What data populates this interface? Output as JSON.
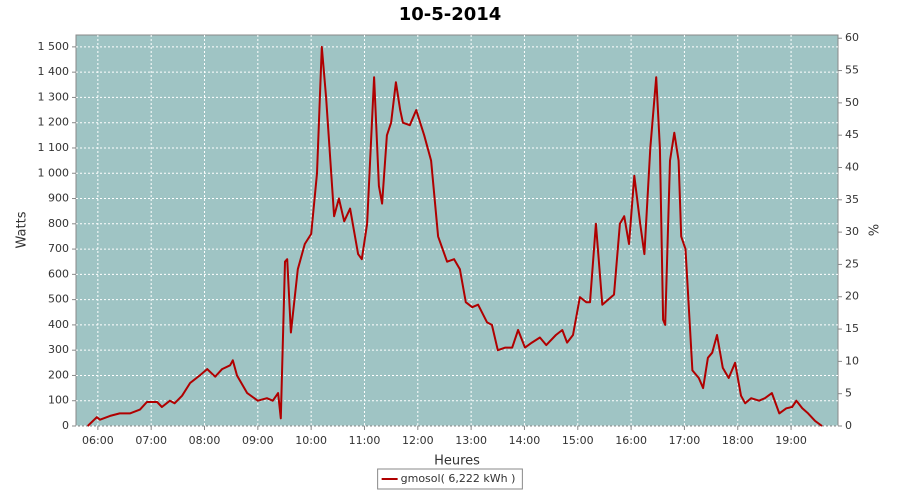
{
  "chart_data": {
    "type": "line",
    "title": "10-5-2014",
    "x_label": "Heures",
    "y_label": "Watts",
    "y2_label": "%",
    "x": [
      5.81,
      5.98,
      6.04,
      6.23,
      6.41,
      6.6,
      6.79,
      6.92,
      7.11,
      7.2,
      7.35,
      7.44,
      7.58,
      7.73,
      7.91,
      8.05,
      8.2,
      8.33,
      8.48,
      8.53,
      8.61,
      8.8,
      9.0,
      9.17,
      9.28,
      9.38,
      9.43,
      9.51,
      9.55,
      9.62,
      9.75,
      9.88,
      10.0,
      10.11,
      10.2,
      10.28,
      10.43,
      10.52,
      10.62,
      10.73,
      10.88,
      10.95,
      11.05,
      11.18,
      11.27,
      11.33,
      11.42,
      11.5,
      11.59,
      11.67,
      11.72,
      11.85,
      11.97,
      12.12,
      12.25,
      12.38,
      12.55,
      12.68,
      12.79,
      12.9,
      13.02,
      13.13,
      13.3,
      13.39,
      13.5,
      13.64,
      13.77,
      13.88,
      14.01,
      14.14,
      14.29,
      14.41,
      14.59,
      14.71,
      14.8,
      14.91,
      15.04,
      15.16,
      15.23,
      15.34,
      15.46,
      15.57,
      15.68,
      15.79,
      15.87,
      15.96,
      16.06,
      16.17,
      16.25,
      16.36,
      16.47,
      16.54,
      16.6,
      16.64,
      16.73,
      16.81,
      16.89,
      16.94,
      17.02,
      17.15,
      17.27,
      17.35,
      17.44,
      17.52,
      17.61,
      17.72,
      17.83,
      17.95,
      18.06,
      18.14,
      18.25,
      18.4,
      18.51,
      18.64,
      18.78,
      18.91,
      19.02,
      19.1,
      19.21,
      19.32,
      19.45,
      19.58
    ],
    "series": [
      {
        "name": "gmosol( 6,222 kWh )",
        "color": "#b00000",
        "values": [
          0,
          35,
          25,
          40,
          50,
          50,
          65,
          95,
          95,
          75,
          100,
          90,
          120,
          170,
          200,
          225,
          195,
          225,
          240,
          260,
          200,
          130,
          100,
          110,
          100,
          130,
          30,
          650,
          660,
          370,
          620,
          720,
          760,
          1000,
          1500,
          1300,
          830,
          900,
          810,
          860,
          680,
          660,
          800,
          1380,
          950,
          880,
          1150,
          1200,
          1360,
          1250,
          1200,
          1190,
          1250,
          1150,
          1050,
          750,
          650,
          660,
          620,
          490,
          470,
          480,
          410,
          400,
          300,
          310,
          310,
          380,
          310,
          330,
          350,
          320,
          360,
          380,
          330,
          360,
          510,
          490,
          490,
          800,
          480,
          500,
          520,
          800,
          830,
          720,
          990,
          800,
          680,
          1100,
          1380,
          1100,
          420,
          400,
          1050,
          1160,
          1050,
          750,
          700,
          220,
          190,
          150,
          270,
          290,
          360,
          230,
          190,
          250,
          120,
          90,
          110,
          100,
          110,
          130,
          50,
          70,
          75,
          100,
          70,
          50,
          20,
          0
        ]
      }
    ],
    "xlim": [
      5.59,
      19.88
    ],
    "xticks": [
      {
        "value": 6,
        "label": "06:00"
      },
      {
        "value": 7,
        "label": "07:00"
      },
      {
        "value": 8,
        "label": "08:00"
      },
      {
        "value": 9,
        "label": "09:00"
      },
      {
        "value": 10,
        "label": "10:00"
      },
      {
        "value": 11,
        "label": "11:00"
      },
      {
        "value": 12,
        "label": "12:00"
      },
      {
        "value": 13,
        "label": "13:00"
      },
      {
        "value": 14,
        "label": "14:00"
      },
      {
        "value": 15,
        "label": "15:00"
      },
      {
        "value": 16,
        "label": "16:00"
      },
      {
        "value": 17,
        "label": "17:00"
      },
      {
        "value": 18,
        "label": "18:00"
      },
      {
        "value": 19,
        "label": "19:00"
      }
    ],
    "ylim": [
      0,
      1547
    ],
    "yticks": [
      0,
      100,
      200,
      300,
      400,
      500,
      600,
      700,
      800,
      900,
      {
        "value": 1000,
        "label": "1 000"
      },
      {
        "value": 1100,
        "label": "1 100"
      },
      {
        "value": 1200,
        "label": "1 200"
      },
      {
        "value": 1300,
        "label": "1 300"
      },
      {
        "value": 1400,
        "label": "1 400"
      },
      {
        "value": 1500,
        "label": "1 500"
      }
    ],
    "y2lim": [
      0,
      60.5
    ],
    "y2ticks": [
      0,
      5,
      10,
      15,
      20,
      25,
      30,
      35,
      40,
      45,
      50,
      55,
      60
    ],
    "grid": true,
    "legend": "bottom",
    "plot_background": "#9fc4c4"
  }
}
